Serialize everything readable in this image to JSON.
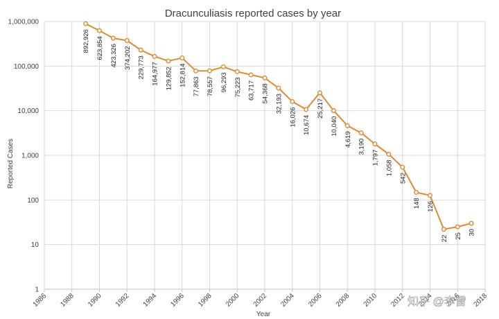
{
  "chart_data": {
    "type": "line",
    "title": "Dracunculiasis reported cases by year",
    "xlabel": "Year",
    "ylabel": "Reported Cases",
    "yscale": "log",
    "ylim": [
      1,
      1000000
    ],
    "xlim": [
      1986,
      2018
    ],
    "grid": true,
    "legend": "none",
    "series_color": "#e08a2e",
    "x_ticks": [
      "1986",
      "1988",
      "1990",
      "1992",
      "1994",
      "1996",
      "1998",
      "2000",
      "2002",
      "2004",
      "2006",
      "2008",
      "2010",
      "2012",
      "2014",
      "2016",
      "2018"
    ],
    "y_ticks": [
      "1",
      "10",
      "100",
      "1,000",
      "10,000",
      "100,000",
      "1,000,000"
    ],
    "x": [
      1989,
      1990,
      1991,
      1992,
      1993,
      1994,
      1995,
      1996,
      1997,
      1998,
      1999,
      2000,
      2001,
      2002,
      2003,
      2004,
      2005,
      2006,
      2007,
      2008,
      2009,
      2010,
      2011,
      2012,
      2013,
      2014,
      2015,
      2016,
      2017
    ],
    "values": [
      892926,
      623854,
      423326,
      374202,
      229773,
      164977,
      129852,
      152814,
      77863,
      78557,
      96293,
      75223,
      63717,
      54368,
      32193,
      16026,
      10674,
      25217,
      10040,
      4619,
      3190,
      1797,
      1058,
      542,
      148,
      126,
      22,
      25,
      30
    ],
    "labels": [
      "892,926",
      "623,854",
      "423,326",
      "374,202",
      "229,773",
      "164,977",
      "129,852",
      "152,814",
      "77,863",
      "78,557",
      "96,293",
      "75,223",
      "63,717",
      "54,368",
      "32,193",
      "16,026",
      "10,674",
      "25,217",
      "10,040",
      "4,619",
      "3,190",
      "1,797",
      "1,058",
      "542",
      "148",
      "126",
      "22",
      "25",
      "30"
    ]
  },
  "watermark": {
    "text": "知乎 @李雷"
  }
}
